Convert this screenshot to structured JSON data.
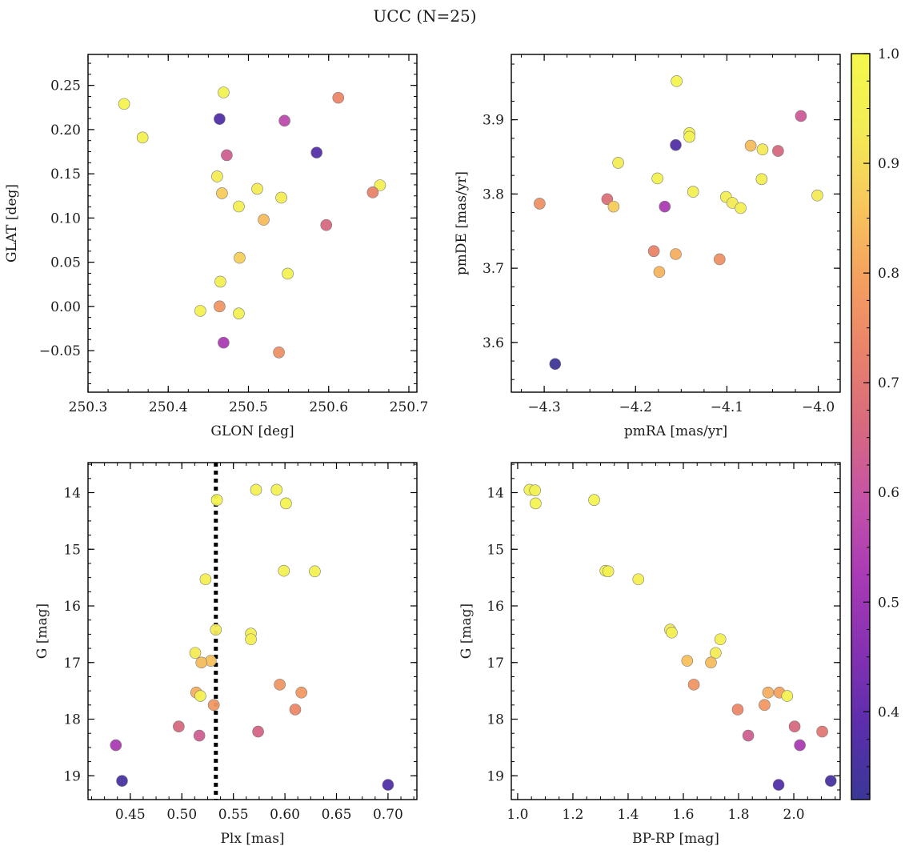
{
  "title": "UCC (N=25)",
  "colorbar": {
    "colormap": "plasma-like",
    "min": 0.32,
    "max": 1.0,
    "ticks": [
      0.4,
      0.5,
      0.6,
      0.7,
      0.8,
      0.9,
      1.0
    ],
    "tick_labels": [
      "0.4",
      "0.5",
      "0.6",
      "0.7",
      "0.8",
      "0.9",
      "1.0"
    ],
    "colors": [
      "#3a3796",
      "#5b2eac",
      "#8531b2",
      "#a93ab5",
      "#c452a8",
      "#d7697f",
      "#e9826a",
      "#f5a05f",
      "#f7c85c",
      "#f3ec55",
      "#f4f84c"
    ]
  },
  "chart_data": [
    {
      "type": "scatter",
      "panel": "top-left",
      "xlabel": "GLON [deg]",
      "ylabel": "GLAT [deg]",
      "xlim": [
        250.3,
        250.71
      ],
      "ylim": [
        -0.097,
        0.285
      ],
      "xticks": [
        250.3,
        250.4,
        250.5,
        250.6,
        250.7
      ],
      "xtick_labels": [
        "250.3",
        "250.4",
        "250.5",
        "250.6",
        "250.7"
      ],
      "yticks": [
        -0.05,
        0.0,
        0.05,
        0.1,
        0.15,
        0.2,
        0.25
      ],
      "ytick_labels": [
        "−0.05",
        "0.00",
        "0.05",
        "0.10",
        "0.15",
        "0.20",
        "0.25"
      ],
      "points": [
        {
          "x": 250.345,
          "y": 0.229,
          "c": 0.97
        },
        {
          "x": 250.368,
          "y": 0.191,
          "c": 0.96
        },
        {
          "x": 250.469,
          "y": 0.242,
          "c": 0.96
        },
        {
          "x": 250.464,
          "y": 0.212,
          "c": 0.37
        },
        {
          "x": 250.612,
          "y": 0.236,
          "c": 0.74
        },
        {
          "x": 250.545,
          "y": 0.21,
          "c": 0.57
        },
        {
          "x": 250.473,
          "y": 0.171,
          "c": 0.63
        },
        {
          "x": 250.585,
          "y": 0.174,
          "c": 0.38
        },
        {
          "x": 250.461,
          "y": 0.147,
          "c": 0.94
        },
        {
          "x": 250.511,
          "y": 0.133,
          "c": 0.94
        },
        {
          "x": 250.467,
          "y": 0.128,
          "c": 0.87
        },
        {
          "x": 250.541,
          "y": 0.123,
          "c": 0.94
        },
        {
          "x": 250.664,
          "y": 0.137,
          "c": 0.95
        },
        {
          "x": 250.655,
          "y": 0.129,
          "c": 0.73
        },
        {
          "x": 250.488,
          "y": 0.113,
          "c": 0.95
        },
        {
          "x": 250.519,
          "y": 0.098,
          "c": 0.84
        },
        {
          "x": 250.597,
          "y": 0.092,
          "c": 0.66
        },
        {
          "x": 250.489,
          "y": 0.055,
          "c": 0.88
        },
        {
          "x": 250.549,
          "y": 0.037,
          "c": 0.96
        },
        {
          "x": 250.465,
          "y": 0.028,
          "c": 0.95
        },
        {
          "x": 250.464,
          "y": 0.0,
          "c": 0.77
        },
        {
          "x": 250.44,
          "y": -0.005,
          "c": 0.96
        },
        {
          "x": 250.488,
          "y": -0.008,
          "c": 0.96
        },
        {
          "x": 250.469,
          "y": -0.041,
          "c": 0.53
        },
        {
          "x": 250.538,
          "y": -0.052,
          "c": 0.76
        }
      ]
    },
    {
      "type": "scatter",
      "panel": "top-right",
      "xlabel": "pmRA [mas/yr]",
      "ylabel": "pmDE [mas/yr]",
      "xlim": [
        -4.336,
        -3.976
      ],
      "ylim": [
        3.533,
        3.988
      ],
      "xticks": [
        -4.3,
        -4.2,
        -4.1,
        -4.0
      ],
      "xtick_labels": [
        "−4.3",
        "−4.2",
        "−4.1",
        "−4.0"
      ],
      "yticks": [
        3.6,
        3.7,
        3.8,
        3.9
      ],
      "ytick_labels": [
        "3.6",
        "3.7",
        "3.8",
        "3.9"
      ],
      "points": [
        {
          "x": -4.155,
          "y": 3.952,
          "c": 0.97
        },
        {
          "x": -4.019,
          "y": 3.905,
          "c": 0.62
        },
        {
          "x": -4.141,
          "y": 3.882,
          "c": 0.96
        },
        {
          "x": -4.141,
          "y": 3.877,
          "c": 0.96
        },
        {
          "x": -4.156,
          "y": 3.866,
          "c": 0.37
        },
        {
          "x": -4.074,
          "y": 3.865,
          "c": 0.84
        },
        {
          "x": -4.061,
          "y": 3.86,
          "c": 0.93
        },
        {
          "x": -4.044,
          "y": 3.858,
          "c": 0.66
        },
        {
          "x": -4.219,
          "y": 3.842,
          "c": 0.94
        },
        {
          "x": -4.176,
          "y": 3.821,
          "c": 0.96
        },
        {
          "x": -4.062,
          "y": 3.82,
          "c": 0.95
        },
        {
          "x": -4.137,
          "y": 3.803,
          "c": 0.95
        },
        {
          "x": -4.101,
          "y": 3.796,
          "c": 0.95
        },
        {
          "x": -4.001,
          "y": 3.798,
          "c": 0.93
        },
        {
          "x": -4.231,
          "y": 3.793,
          "c": 0.68
        },
        {
          "x": -4.094,
          "y": 3.788,
          "c": 0.93
        },
        {
          "x": -4.305,
          "y": 3.787,
          "c": 0.76
        },
        {
          "x": -4.224,
          "y": 3.783,
          "c": 0.87
        },
        {
          "x": -4.168,
          "y": 3.783,
          "c": 0.53
        },
        {
          "x": -4.085,
          "y": 3.781,
          "c": 0.95
        },
        {
          "x": -4.18,
          "y": 3.723,
          "c": 0.73
        },
        {
          "x": -4.156,
          "y": 3.719,
          "c": 0.82
        },
        {
          "x": -4.108,
          "y": 3.712,
          "c": 0.76
        },
        {
          "x": -4.174,
          "y": 3.695,
          "c": 0.83
        },
        {
          "x": -4.288,
          "y": 3.571,
          "c": 0.33
        }
      ]
    },
    {
      "type": "scatter",
      "panel": "bottom-left",
      "xlabel": "Plx [mas]",
      "ylabel": "G [mag]",
      "xlim": [
        0.409,
        0.728
      ],
      "ylim": [
        19.42,
        13.47
      ],
      "y_inverted": true,
      "xticks": [
        0.45,
        0.5,
        0.55,
        0.6,
        0.65,
        0.7
      ],
      "xtick_labels": [
        "0.45",
        "0.50",
        "0.55",
        "0.60",
        "0.65",
        "0.70"
      ],
      "yticks": [
        14,
        15,
        16,
        17,
        18,
        19
      ],
      "ytick_labels": [
        "14",
        "15",
        "16",
        "17",
        "18",
        "19"
      ],
      "vline": {
        "x": 0.533,
        "style": "dotted"
      },
      "points": [
        {
          "x": 0.572,
          "y": 13.95,
          "c": 0.96
        },
        {
          "x": 0.592,
          "y": 13.95,
          "c": 0.96
        },
        {
          "x": 0.534,
          "y": 14.13,
          "c": 0.97
        },
        {
          "x": 0.601,
          "y": 14.19,
          "c": 0.97
        },
        {
          "x": 0.599,
          "y": 15.38,
          "c": 0.96
        },
        {
          "x": 0.629,
          "y": 15.39,
          "c": 0.96
        },
        {
          "x": 0.523,
          "y": 15.53,
          "c": 0.95
        },
        {
          "x": 0.533,
          "y": 16.42,
          "c": 0.93
        },
        {
          "x": 0.567,
          "y": 16.49,
          "c": 0.95
        },
        {
          "x": 0.567,
          "y": 16.59,
          "c": 0.95
        },
        {
          "x": 0.513,
          "y": 16.83,
          "c": 0.93
        },
        {
          "x": 0.528,
          "y": 16.97,
          "c": 0.85
        },
        {
          "x": 0.519,
          "y": 17.0,
          "c": 0.84
        },
        {
          "x": 0.595,
          "y": 17.39,
          "c": 0.77
        },
        {
          "x": 0.514,
          "y": 17.53,
          "c": 0.82
        },
        {
          "x": 0.616,
          "y": 17.53,
          "c": 0.78
        },
        {
          "x": 0.518,
          "y": 17.59,
          "c": 0.96
        },
        {
          "x": 0.531,
          "y": 17.75,
          "c": 0.78
        },
        {
          "x": 0.61,
          "y": 17.83,
          "c": 0.74
        },
        {
          "x": 0.497,
          "y": 18.13,
          "c": 0.66
        },
        {
          "x": 0.574,
          "y": 18.22,
          "c": 0.65
        },
        {
          "x": 0.517,
          "y": 18.29,
          "c": 0.63
        },
        {
          "x": 0.436,
          "y": 18.46,
          "c": 0.53
        },
        {
          "x": 0.442,
          "y": 19.09,
          "c": 0.35
        },
        {
          "x": 0.7,
          "y": 19.16,
          "c": 0.37
        }
      ]
    },
    {
      "type": "scatter",
      "panel": "bottom-right",
      "xlabel": "BP-RP [mag]",
      "ylabel": "G [mag]",
      "xlim": [
        0.977,
        2.168
      ],
      "ylim": [
        19.42,
        13.47
      ],
      "y_inverted": true,
      "xticks": [
        1.0,
        1.2,
        1.4,
        1.6,
        1.8,
        2.0
      ],
      "xtick_labels": [
        "1.0",
        "1.2",
        "1.4",
        "1.6",
        "1.8",
        "2.0"
      ],
      "yticks": [
        14,
        15,
        16,
        17,
        18,
        19
      ],
      "ytick_labels": [
        "14",
        "15",
        "16",
        "17",
        "18",
        "19"
      ],
      "points": [
        {
          "x": 1.043,
          "y": 13.95,
          "c": 0.96
        },
        {
          "x": 1.063,
          "y": 13.96,
          "c": 0.96
        },
        {
          "x": 1.065,
          "y": 14.19,
          "c": 0.97
        },
        {
          "x": 1.277,
          "y": 14.13,
          "c": 0.97
        },
        {
          "x": 1.318,
          "y": 15.38,
          "c": 0.96
        },
        {
          "x": 1.328,
          "y": 15.39,
          "c": 0.96
        },
        {
          "x": 1.437,
          "y": 15.53,
          "c": 0.95
        },
        {
          "x": 1.552,
          "y": 16.42,
          "c": 0.93
        },
        {
          "x": 1.558,
          "y": 16.47,
          "c": 0.95
        },
        {
          "x": 1.734,
          "y": 16.59,
          "c": 0.95
        },
        {
          "x": 1.717,
          "y": 16.83,
          "c": 0.93
        },
        {
          "x": 1.614,
          "y": 16.97,
          "c": 0.85
        },
        {
          "x": 1.7,
          "y": 17.0,
          "c": 0.84
        },
        {
          "x": 1.638,
          "y": 17.39,
          "c": 0.77
        },
        {
          "x": 1.907,
          "y": 17.53,
          "c": 0.82
        },
        {
          "x": 1.948,
          "y": 17.53,
          "c": 0.8
        },
        {
          "x": 1.976,
          "y": 17.59,
          "c": 0.96
        },
        {
          "x": 1.894,
          "y": 17.75,
          "c": 0.78
        },
        {
          "x": 1.797,
          "y": 17.83,
          "c": 0.74
        },
        {
          "x": 2.003,
          "y": 18.13,
          "c": 0.66
        },
        {
          "x": 2.103,
          "y": 18.22,
          "c": 0.7
        },
        {
          "x": 1.835,
          "y": 18.29,
          "c": 0.63
        },
        {
          "x": 2.022,
          "y": 18.46,
          "c": 0.53
        },
        {
          "x": 2.134,
          "y": 19.09,
          "c": 0.35
        },
        {
          "x": 1.945,
          "y": 19.16,
          "c": 0.37
        }
      ]
    }
  ]
}
